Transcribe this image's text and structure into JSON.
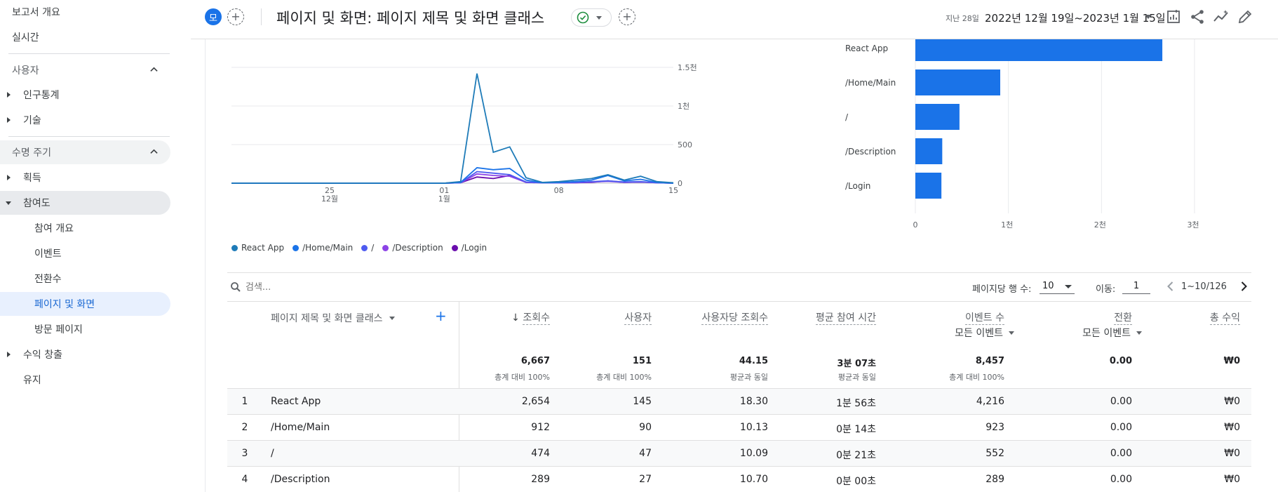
{
  "sidebar": {
    "overview": "보고서 개요",
    "realtime": "실시간",
    "user_section": "사용자",
    "demographics": "인구통계",
    "tech": "기술",
    "lifecycle_section": "수명 주기",
    "acquisition": "획득",
    "engagement": "참여도",
    "engagement_overview": "참여 개요",
    "events": "이벤트",
    "conversions": "전환수",
    "pages_screens": "페이지 및 화면",
    "landing_page": "방문 페이지",
    "monetization": "수익 창출",
    "retention": "유지"
  },
  "header": {
    "avatar_letter": "모",
    "title": "페이지 및 화면: 페이지 제목 및 화면 클래스",
    "range_label": "지난 28일",
    "date_range": "2022년 12월 19일~2023년 1월 15일"
  },
  "line_chart": {
    "y_ticks": [
      "1.5천",
      "1천",
      "500",
      "0"
    ],
    "x_ticks": [
      {
        "day": "25",
        "month": "12월"
      },
      {
        "day": "01",
        "month": "1월"
      },
      {
        "day": "08",
        "month": ""
      },
      {
        "day": "15",
        "month": ""
      }
    ]
  },
  "bar_chart": {
    "x_ticks": [
      "0",
      "1천",
      "2천",
      "3천"
    ]
  },
  "legend": [
    {
      "name": "React App",
      "color": "#1e7bb8"
    },
    {
      "name": "/Home/Main",
      "color": "#1a73e8"
    },
    {
      "name": "/",
      "color": "#4e5bf0"
    },
    {
      "name": "/Description",
      "color": "#8c43e6"
    },
    {
      "name": "/Login",
      "color": "#6a0dad"
    }
  ],
  "chart_data": [
    {
      "type": "line",
      "x": [
        "12-19",
        "12-20",
        "12-21",
        "12-22",
        "12-23",
        "12-24",
        "12-25",
        "12-26",
        "12-27",
        "12-28",
        "12-29",
        "12-30",
        "12-31",
        "01-01",
        "01-02",
        "01-03",
        "01-04",
        "01-05",
        "01-06",
        "01-07",
        "01-08",
        "01-09",
        "01-10",
        "01-11",
        "01-12",
        "01-13",
        "01-14",
        "01-15"
      ],
      "ylim": [
        0,
        1500
      ],
      "grid": true,
      "series": [
        {
          "name": "React App",
          "values": [
            0,
            0,
            0,
            0,
            0,
            0,
            0,
            0,
            0,
            0,
            0,
            0,
            0,
            0,
            20,
            1420,
            400,
            470,
            70,
            10,
            20,
            40,
            60,
            110,
            40,
            90,
            20,
            5
          ]
        },
        {
          "name": "/Home/Main",
          "values": [
            0,
            0,
            0,
            0,
            0,
            0,
            0,
            0,
            0,
            0,
            0,
            0,
            0,
            0,
            10,
            200,
            175,
            190,
            40,
            5,
            10,
            20,
            40,
            100,
            30,
            50,
            10,
            0
          ]
        },
        {
          "name": "/",
          "values": [
            0,
            0,
            0,
            0,
            0,
            0,
            0,
            0,
            0,
            0,
            0,
            0,
            0,
            0,
            5,
            150,
            130,
            110,
            15,
            5,
            5,
            10,
            20,
            30,
            15,
            20,
            5,
            0
          ]
        },
        {
          "name": "/Description",
          "values": [
            0,
            0,
            0,
            0,
            0,
            0,
            0,
            0,
            0,
            0,
            0,
            0,
            0,
            0,
            5,
            120,
            100,
            90,
            10,
            5,
            5,
            5,
            15,
            25,
            10,
            15,
            5,
            0
          ]
        },
        {
          "name": "/Login",
          "values": [
            0,
            0,
            0,
            0,
            0,
            0,
            0,
            0,
            0,
            0,
            0,
            0,
            0,
            0,
            5,
            80,
            60,
            100,
            10,
            5,
            5,
            5,
            10,
            30,
            10,
            15,
            5,
            0
          ]
        }
      ]
    },
    {
      "type": "bar",
      "orientation": "horizontal",
      "categories": [
        "React App",
        "/Home/Main",
        "/",
        "/Description",
        "/Login"
      ],
      "values": [
        2654,
        912,
        474,
        289,
        280
      ],
      "xlim": [
        0,
        3000
      ],
      "grid": true
    }
  ],
  "toolbar": {
    "search_placeholder": "검색...",
    "rows_label": "페이지당 행 수:",
    "rows_value": "10",
    "goto_label": "이동:",
    "goto_value": "1",
    "page_count": "1~10/126"
  },
  "table": {
    "dimension_header": "페이지 제목 및 화면 클래스",
    "columns": [
      {
        "label": "조회수",
        "sorted": true,
        "sub": ""
      },
      {
        "label": "사용자",
        "sub": ""
      },
      {
        "label": "사용자당 조회수",
        "sub": ""
      },
      {
        "label": "평균 참여 시간",
        "sub": ""
      },
      {
        "label": "이벤트 수",
        "sub": "모든 이벤트"
      },
      {
        "label": "전환",
        "sub": "모든 이벤트"
      },
      {
        "label": "총 수익",
        "sub": ""
      }
    ],
    "totals": [
      {
        "value": "6,667",
        "sub": "총계 대비 100%"
      },
      {
        "value": "151",
        "sub": "총계 대비 100%"
      },
      {
        "value": "44.15",
        "sub": "평균과 동일"
      },
      {
        "value": "3분 07초",
        "sub": "평균과 동일"
      },
      {
        "value": "8,457",
        "sub": "총계 대비 100%"
      },
      {
        "value": "0.00",
        "sub": ""
      },
      {
        "value": "₩0",
        "sub": ""
      }
    ],
    "rows": [
      {
        "idx": "1",
        "name": "React App",
        "views": "2,654",
        "users": "145",
        "vpu": "18.30",
        "time": "1분 56초",
        "events": "4,216",
        "conv": "0.00",
        "rev": "₩0"
      },
      {
        "idx": "2",
        "name": "/Home/Main",
        "views": "912",
        "users": "90",
        "vpu": "10.13",
        "time": "0분 14초",
        "events": "923",
        "conv": "0.00",
        "rev": "₩0"
      },
      {
        "idx": "3",
        "name": "/",
        "views": "474",
        "users": "47",
        "vpu": "10.09",
        "time": "0분 21초",
        "events": "552",
        "conv": "0.00",
        "rev": "₩0"
      },
      {
        "idx": "4",
        "name": "/Description",
        "views": "289",
        "users": "27",
        "vpu": "10.70",
        "time": "0분 00초",
        "events": "289",
        "conv": "0.00",
        "rev": "₩0"
      }
    ]
  }
}
